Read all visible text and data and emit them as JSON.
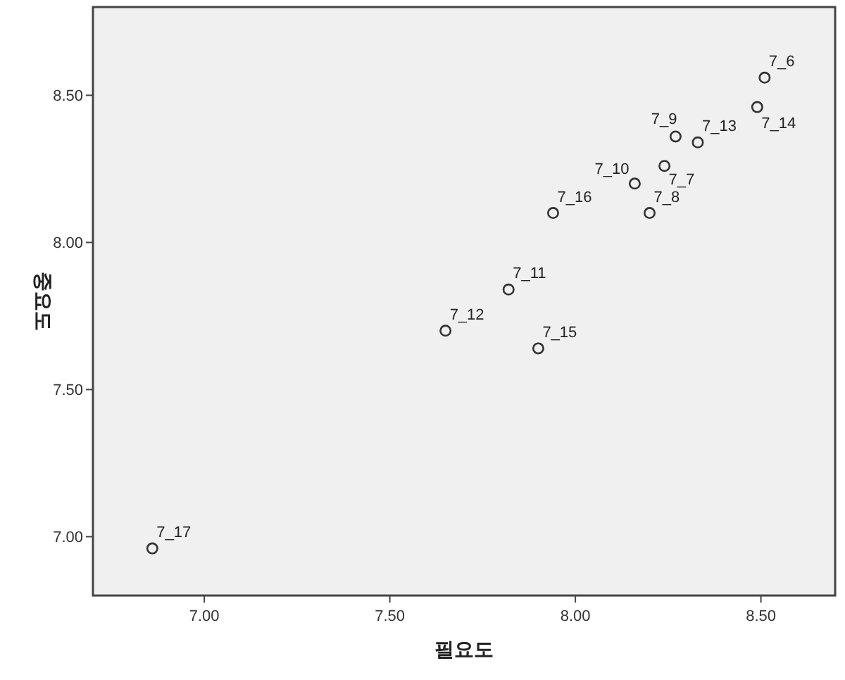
{
  "chart_data": {
    "type": "scatter",
    "xlabel": "필요도",
    "ylabel": "중요도",
    "x": [
      8.51,
      8.49,
      8.27,
      8.33,
      8.24,
      8.16,
      8.2,
      7.94,
      7.82,
      7.65,
      7.9,
      6.86
    ],
    "values": [
      8.56,
      8.46,
      8.36,
      8.34,
      8.26,
      8.2,
      8.1,
      8.1,
      7.84,
      7.7,
      7.64,
      6.96
    ],
    "color": "#333333",
    "marker": "circle",
    "xlim": [
      6.7,
      8.7
    ],
    "ylim": [
      6.8,
      8.8
    ],
    "xticks": [
      {
        "value": 7,
        "label": "7.00"
      },
      {
        "value": 7.5,
        "label": "7.50"
      },
      {
        "value": 8,
        "label": "8.00"
      },
      {
        "value": 8.5,
        "label": "8.50"
      }
    ],
    "yticks": [
      {
        "value": 7,
        "label": "7.00"
      },
      {
        "value": 7.5,
        "label": "7.50"
      },
      {
        "value": 8,
        "label": "8.00"
      },
      {
        "value": 8.5,
        "label": "8.50"
      }
    ],
    "annotations": [
      {
        "text": "7_6",
        "x": 8.51,
        "y": 8.56
      },
      {
        "text": "7_14",
        "x": 8.49,
        "y": 8.46
      },
      {
        "text": "7_9",
        "x": 8.27,
        "y": 8.36
      },
      {
        "text": "7_13",
        "x": 8.33,
        "y": 8.34
      },
      {
        "text": "7_7",
        "x": 8.24,
        "y": 8.26
      },
      {
        "text": "7_10",
        "x": 8.16,
        "y": 8.2
      },
      {
        "text": "7_8",
        "x": 8.2,
        "y": 8.1
      },
      {
        "text": "7_16",
        "x": 7.94,
        "y": 8.1
      },
      {
        "text": "7_11",
        "x": 7.82,
        "y": 7.84
      },
      {
        "text": "7_12",
        "x": 7.65,
        "y": 7.7
      },
      {
        "text": "7_15",
        "x": 7.9,
        "y": 7.64
      },
      {
        "text": "7_17",
        "x": 6.86,
        "y": 6.96
      }
    ]
  }
}
